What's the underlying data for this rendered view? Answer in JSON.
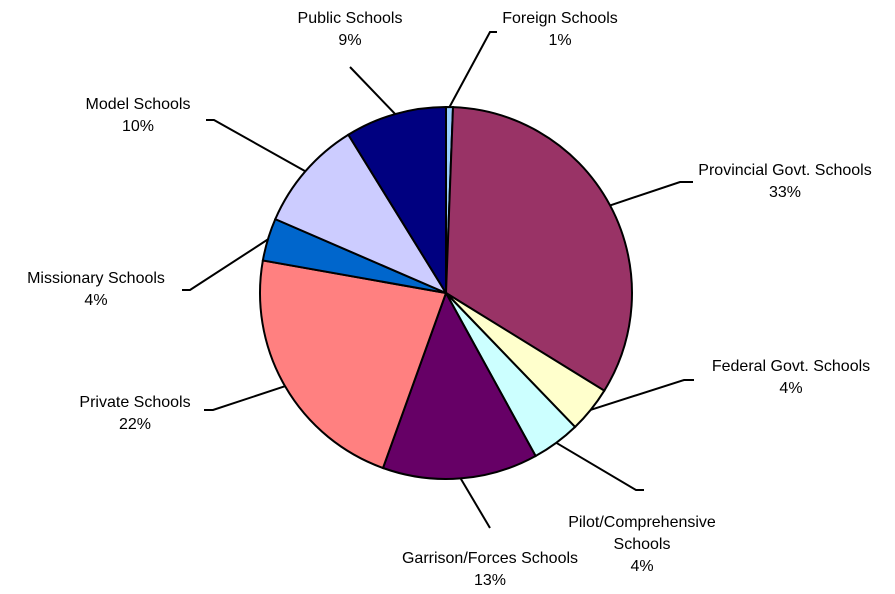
{
  "chart_data": {
    "type": "pie",
    "title": "",
    "slices": [
      {
        "label": "Foreign Schools",
        "value_label": "1%",
        "value": 0.6,
        "color": "#99ccff"
      },
      {
        "label": "Provincial Govt. Schools",
        "value_label": "33%",
        "value": 33.2,
        "color": "#993366"
      },
      {
        "label": "Federal Govt. Schools",
        "value_label": "4%",
        "value": 4.0,
        "color": "#ffffcc"
      },
      {
        "label": "Pilot/Comprehensive Schools",
        "value_label": "4%",
        "value": 4.2,
        "color": "#ccffff"
      },
      {
        "label": "Garrison/Forces Schools",
        "value_label": "13%",
        "value": 13.5,
        "color": "#660066"
      },
      {
        "label": "Private Schools",
        "value_label": "22%",
        "value": 22.3,
        "color": "#ff8080"
      },
      {
        "label": "Missionary Schools",
        "value_label": "4%",
        "value": 3.7,
        "color": "#0066cc"
      },
      {
        "label": "Model Schools",
        "value_label": "10%",
        "value": 9.7,
        "color": "#ccccff"
      },
      {
        "label": "Public Schools",
        "value_label": "9%",
        "value": 8.8,
        "color": "#000080"
      }
    ]
  }
}
